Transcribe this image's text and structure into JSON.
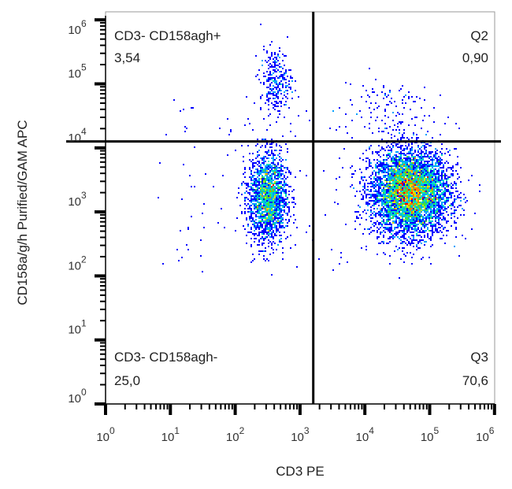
{
  "chart_data": {
    "type": "scatter",
    "subtype": "flow-cytometry-density-dot-plot",
    "xlabel": "CD3 PE",
    "ylabel": "CD158a/g/h Purified/GAM APC",
    "xscale": "log",
    "yscale": "log",
    "xlim": [
      1,
      1000000
    ],
    "ylim": [
      1,
      1000000
    ],
    "x_ticks": [
      {
        "base": "10",
        "exp": "0"
      },
      {
        "base": "10",
        "exp": "1"
      },
      {
        "base": "10",
        "exp": "2"
      },
      {
        "base": "10",
        "exp": "3"
      },
      {
        "base": "10",
        "exp": "4"
      },
      {
        "base": "10",
        "exp": "5"
      },
      {
        "base": "10",
        "exp": "6"
      }
    ],
    "y_ticks": [
      {
        "base": "10",
        "exp": "0"
      },
      {
        "base": "10",
        "exp": "1"
      },
      {
        "base": "10",
        "exp": "2"
      },
      {
        "base": "10",
        "exp": "3"
      },
      {
        "base": "10",
        "exp": "4"
      },
      {
        "base": "10",
        "exp": "5"
      },
      {
        "base": "10",
        "exp": "6"
      }
    ],
    "quadrant_gate": {
      "x": 1600,
      "y": 12600
    },
    "quadrants": [
      {
        "name": "CD3- CD158agh+",
        "value": "3,54",
        "position": "top-left"
      },
      {
        "name": "Q2",
        "value": "0,90",
        "position": "top-right"
      },
      {
        "name": "CD3- CD158agh-",
        "value": "25,0",
        "position": "bottom-left"
      },
      {
        "name": "Q3",
        "value": "70,6",
        "position": "bottom-right"
      }
    ],
    "populations": [
      {
        "x_center": 50000,
        "y_center": 2000,
        "x_sd_decades": 0.3,
        "y_sd_decades": 0.33,
        "events": 5200
      },
      {
        "x_center": 320,
        "y_center": 1700,
        "x_sd_decades": 0.15,
        "y_sd_decades": 0.35,
        "events": 1900
      },
      {
        "x_center": 420,
        "y_center": 110000,
        "x_sd_decades": 0.12,
        "y_sd_decades": 0.25,
        "events": 280
      },
      {
        "x_center": 20000,
        "y_center": 40000,
        "x_sd_decades": 0.35,
        "y_sd_decades": 0.3,
        "events": 120
      }
    ],
    "colormap": [
      "#0000ff",
      "#00a0ff",
      "#00e0c0",
      "#40e040",
      "#e0e000",
      "#ff8000",
      "#ff0000"
    ],
    "grid": false
  }
}
